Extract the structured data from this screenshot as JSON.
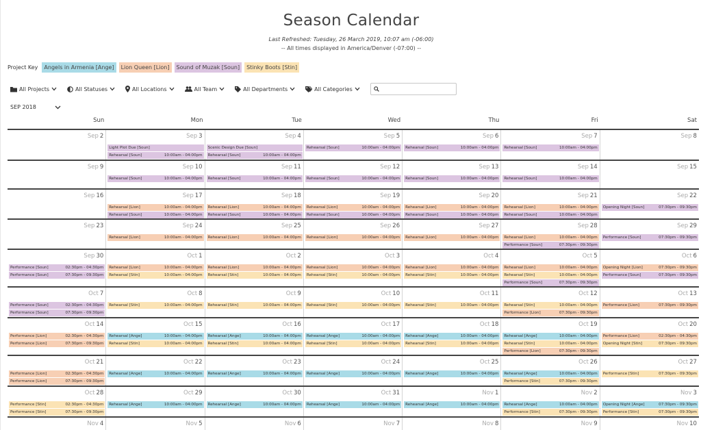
{
  "header": {
    "title": "Season Calendar",
    "refreshed": "Last Refreshed: Tuesday, 26 March 2019, 10:07 am (-06:00)",
    "timezone": "-- All times displayed in America/Denver (-07:00) --"
  },
  "project_key": {
    "label": "Project Key",
    "projects": [
      {
        "label": "Angels in Armenia [Ange]",
        "color": "#a9dbe7"
      },
      {
        "label": "Lion Queen [Lion]",
        "color": "#f7cfb4"
      },
      {
        "label": "Sound of Muzak [Soun]",
        "color": "#dcc5e1"
      },
      {
        "label": "Stinky Boots [Stin]",
        "color": "#fbe3b4"
      }
    ]
  },
  "filters": [
    {
      "label": "All Projects",
      "icon": "folder-icon"
    },
    {
      "label": "All Statuses",
      "icon": "half-circle-icon"
    },
    {
      "label": "All Locations",
      "icon": "location-pin-icon"
    },
    {
      "label": "All Team",
      "icon": "people-icon"
    },
    {
      "label": "All Departments",
      "icon": "tag-icon"
    },
    {
      "label": "All Categories",
      "icon": "tags-icon"
    }
  ],
  "search": {
    "placeholder": "",
    "icon": "search-icon"
  },
  "month_selector": {
    "value": "SEP 2018"
  },
  "day_headers": [
    "Sun",
    "Mon",
    "Tue",
    "Wed",
    "Thu",
    "Fri",
    "Sat"
  ],
  "weeks": [
    [
      {
        "mon": "Sep",
        "day": "2",
        "events": []
      },
      {
        "mon": "Sep",
        "day": "3",
        "events": [
          {
            "label": "Light Plot Due [Soun]",
            "time": "",
            "proj": "soun"
          },
          {
            "label": "Rehearsal [Soun]",
            "time": "10:00am - 04:00pm",
            "proj": "soun"
          }
        ]
      },
      {
        "mon": "Sep",
        "day": "4",
        "events": [
          {
            "label": "Scenic Design Due [Soun]",
            "time": "",
            "proj": "soun"
          },
          {
            "label": "Rehearsal [Soun]",
            "time": "10:00am - 04:00pm",
            "proj": "soun"
          }
        ]
      },
      {
        "mon": "Sep",
        "day": "5",
        "events": [
          {
            "label": "Rehearsal [Soun]",
            "time": "10:00am - 04:00pm",
            "proj": "soun"
          }
        ]
      },
      {
        "mon": "Sep",
        "day": "6",
        "events": [
          {
            "label": "Rehearsal [Soun]",
            "time": "10:00am - 04:00pm",
            "proj": "soun"
          }
        ]
      },
      {
        "mon": "Sep",
        "day": "7",
        "events": [
          {
            "label": "Rehearsal [Soun]",
            "time": "10:00am - 04:00pm",
            "proj": "soun"
          }
        ]
      },
      {
        "mon": "Sep",
        "day": "8",
        "events": []
      }
    ],
    [
      {
        "mon": "Sep",
        "day": "9",
        "events": []
      },
      {
        "mon": "Sep",
        "day": "10",
        "events": [
          {
            "label": "Rehearsal [Soun]",
            "time": "10:00am - 04:00pm",
            "proj": "soun"
          }
        ]
      },
      {
        "mon": "Sep",
        "day": "11",
        "events": [
          {
            "label": "Rehearsal [Soun]",
            "time": "10:00am - 04:00pm",
            "proj": "soun"
          }
        ]
      },
      {
        "mon": "Sep",
        "day": "12",
        "events": [
          {
            "label": "Rehearsal [Soun]",
            "time": "10:00am - 04:00pm",
            "proj": "soun"
          }
        ]
      },
      {
        "mon": "Sep",
        "day": "13",
        "events": [
          {
            "label": "Rehearsal [Soun]",
            "time": "10:00am - 04:00pm",
            "proj": "soun"
          }
        ]
      },
      {
        "mon": "Sep",
        "day": "14",
        "events": [
          {
            "label": "Rehearsal [Soun]",
            "time": "10:00am - 04:00pm",
            "proj": "soun"
          }
        ]
      },
      {
        "mon": "Sep",
        "day": "15",
        "events": []
      }
    ],
    [
      {
        "mon": "Sep",
        "day": "16",
        "events": []
      },
      {
        "mon": "Sep",
        "day": "17",
        "events": [
          {
            "label": "Rehearsal [Lion]",
            "time": "10:00am - 04:00pm",
            "proj": "lion"
          },
          {
            "label": "Rehearsal [Soun]",
            "time": "10:00am - 04:00pm",
            "proj": "soun"
          }
        ]
      },
      {
        "mon": "Sep",
        "day": "18",
        "events": [
          {
            "label": "Rehearsal [Lion]",
            "time": "10:00am - 04:00pm",
            "proj": "lion"
          },
          {
            "label": "Rehearsal [Soun]",
            "time": "10:00am - 04:00pm",
            "proj": "soun"
          }
        ]
      },
      {
        "mon": "Sep",
        "day": "19",
        "events": [
          {
            "label": "Rehearsal [Lion]",
            "time": "10:00am - 04:00pm",
            "proj": "lion"
          },
          {
            "label": "Rehearsal [Soun]",
            "time": "10:00am - 04:00pm",
            "proj": "soun"
          }
        ]
      },
      {
        "mon": "Sep",
        "day": "20",
        "events": [
          {
            "label": "Rehearsal [Lion]",
            "time": "10:00am - 04:00pm",
            "proj": "lion"
          },
          {
            "label": "Rehearsal [Soun]",
            "time": "10:00am - 04:00pm",
            "proj": "soun"
          }
        ]
      },
      {
        "mon": "Sep",
        "day": "21",
        "events": [
          {
            "label": "Rehearsal [Lion]",
            "time": "10:00am - 04:00pm",
            "proj": "lion"
          },
          {
            "label": "Rehearsal [Soun]",
            "time": "10:00am - 04:00pm",
            "proj": "soun"
          }
        ]
      },
      {
        "mon": "Sep",
        "day": "22",
        "events": [
          {
            "label": "Opening Night [Soun]",
            "time": "07:30pm - 09:30pm",
            "proj": "soun"
          }
        ]
      }
    ],
    [
      {
        "mon": "Sep",
        "day": "23",
        "events": []
      },
      {
        "mon": "Sep",
        "day": "24",
        "events": [
          {
            "label": "Rehearsal [Lion]",
            "time": "10:00am - 04:00pm",
            "proj": "lion"
          }
        ]
      },
      {
        "mon": "Sep",
        "day": "25",
        "events": [
          {
            "label": "Rehearsal [Lion]",
            "time": "10:00am - 04:00pm",
            "proj": "lion"
          }
        ]
      },
      {
        "mon": "Sep",
        "day": "26",
        "events": [
          {
            "label": "Rehearsal [Lion]",
            "time": "10:00am - 04:00pm",
            "proj": "lion"
          }
        ]
      },
      {
        "mon": "Sep",
        "day": "27",
        "events": [
          {
            "label": "Rehearsal [Lion]",
            "time": "10:00am - 04:00pm",
            "proj": "lion"
          }
        ]
      },
      {
        "mon": "Sep",
        "day": "28",
        "events": [
          {
            "label": "Rehearsal [Lion]",
            "time": "10:00am - 04:00pm",
            "proj": "lion"
          },
          {
            "label": "Performance [Soun]",
            "time": "07:30pm - 09:30pm",
            "proj": "soun"
          }
        ]
      },
      {
        "mon": "Sep",
        "day": "29",
        "events": [
          {
            "label": "Performance [Soun]",
            "time": "07:30pm - 09:30pm",
            "proj": "soun"
          }
        ]
      }
    ],
    [
      {
        "mon": "Sep",
        "day": "30",
        "events": [
          {
            "label": "Performance [Soun]",
            "time": "02:30pm - 04:30pm",
            "proj": "soun"
          },
          {
            "label": "Performance [Soun]",
            "time": "07:30pm - 09:30pm",
            "proj": "soun"
          }
        ]
      },
      {
        "mon": "Oct",
        "day": "1",
        "events": [
          {
            "label": "Rehearsal [Lion]",
            "time": "10:00am - 04:00pm",
            "proj": "lion"
          },
          {
            "label": "Rehearsal [Stin]",
            "time": "10:00am - 04:00pm",
            "proj": "stin"
          }
        ]
      },
      {
        "mon": "Oct",
        "day": "2",
        "events": [
          {
            "label": "Rehearsal [Lion]",
            "time": "10:00am - 04:00pm",
            "proj": "lion"
          },
          {
            "label": "Rehearsal [Stin]",
            "time": "10:00am - 04:00pm",
            "proj": "stin"
          }
        ]
      },
      {
        "mon": "Oct",
        "day": "3",
        "events": [
          {
            "label": "Rehearsal [Lion]",
            "time": "10:00am - 04:00pm",
            "proj": "lion"
          },
          {
            "label": "Rehearsal [Stin]",
            "time": "10:00am - 04:00pm",
            "proj": "stin"
          }
        ]
      },
      {
        "mon": "Oct",
        "day": "4",
        "events": [
          {
            "label": "Rehearsal [Lion]",
            "time": "10:00am - 04:00pm",
            "proj": "lion"
          },
          {
            "label": "Rehearsal [Stin]",
            "time": "10:00am - 04:00pm",
            "proj": "stin"
          }
        ]
      },
      {
        "mon": "Oct",
        "day": "5",
        "events": [
          {
            "label": "Rehearsal [Lion]",
            "time": "10:00am - 04:00pm",
            "proj": "lion"
          },
          {
            "label": "Rehearsal [Stin]",
            "time": "10:00am - 04:00pm",
            "proj": "stin"
          },
          {
            "label": "Performance [Soun]",
            "time": "07:30pm - 09:30pm",
            "proj": "soun"
          }
        ]
      },
      {
        "mon": "Oct",
        "day": "6",
        "events": [
          {
            "label": "Opening Night [Lion]",
            "time": "07:30pm - 09:30pm",
            "proj": "lion"
          },
          {
            "label": "Performance [Soun]",
            "time": "07:30pm - 09:30pm",
            "proj": "soun"
          }
        ]
      }
    ],
    [
      {
        "mon": "Oct",
        "day": "7",
        "events": [
          {
            "label": "Performance [Soun]",
            "time": "02:30pm - 04:30pm",
            "proj": "soun"
          },
          {
            "label": "Performance [Soun]",
            "time": "07:30pm - 09:30pm",
            "proj": "soun"
          }
        ]
      },
      {
        "mon": "Oct",
        "day": "8",
        "events": [
          {
            "label": "Rehearsal [Stin]",
            "time": "10:00am - 04:00pm",
            "proj": "stin"
          }
        ]
      },
      {
        "mon": "Oct",
        "day": "9",
        "events": [
          {
            "label": "Rehearsal [Stin]",
            "time": "10:00am - 04:00pm",
            "proj": "stin"
          }
        ]
      },
      {
        "mon": "Oct",
        "day": "10",
        "events": [
          {
            "label": "Rehearsal [Stin]",
            "time": "10:00am - 04:00pm",
            "proj": "stin"
          }
        ]
      },
      {
        "mon": "Oct",
        "day": "11",
        "events": [
          {
            "label": "Rehearsal [Stin]",
            "time": "10:00am - 04:00pm",
            "proj": "stin"
          }
        ]
      },
      {
        "mon": "Oct",
        "day": "12",
        "events": [
          {
            "label": "Rehearsal [Stin]",
            "time": "10:00am - 04:00pm",
            "proj": "stin"
          },
          {
            "label": "Performance [Lion]",
            "time": "07:30pm - 09:30pm",
            "proj": "lion"
          }
        ]
      },
      {
        "mon": "Oct",
        "day": "13",
        "events": [
          {
            "label": "Performance [Lion]",
            "time": "07:30pm - 09:30pm",
            "proj": "lion"
          }
        ]
      }
    ],
    [
      {
        "mon": "Oct",
        "day": "14",
        "events": [
          {
            "label": "Performance [Lion]",
            "time": "02:30pm - 04:30pm",
            "proj": "lion"
          },
          {
            "label": "Performance [Lion]",
            "time": "07:30pm - 09:30pm",
            "proj": "lion"
          }
        ]
      },
      {
        "mon": "Oct",
        "day": "15",
        "events": [
          {
            "label": "Rehearsal [Ange]",
            "time": "10:00am - 04:00pm",
            "proj": "ange"
          },
          {
            "label": "Rehearsal [Stin]",
            "time": "10:00am - 04:00pm",
            "proj": "stin"
          }
        ]
      },
      {
        "mon": "Oct",
        "day": "16",
        "events": [
          {
            "label": "Rehearsal [Ange]",
            "time": "10:00am - 04:00pm",
            "proj": "ange"
          },
          {
            "label": "Rehearsal [Stin]",
            "time": "10:00am - 04:00pm",
            "proj": "stin"
          }
        ]
      },
      {
        "mon": "Oct",
        "day": "17",
        "events": [
          {
            "label": "Rehearsal [Ange]",
            "time": "10:00am - 04:00pm",
            "proj": "ange"
          },
          {
            "label": "Rehearsal [Stin]",
            "time": "10:00am - 04:00pm",
            "proj": "stin"
          }
        ]
      },
      {
        "mon": "Oct",
        "day": "18",
        "events": [
          {
            "label": "Rehearsal [Ange]",
            "time": "10:00am - 04:00pm",
            "proj": "ange"
          },
          {
            "label": "Rehearsal [Stin]",
            "time": "10:00am - 04:00pm",
            "proj": "stin"
          }
        ]
      },
      {
        "mon": "Oct",
        "day": "19",
        "events": [
          {
            "label": "Rehearsal [Ange]",
            "time": "10:00am - 04:00pm",
            "proj": "ange"
          },
          {
            "label": "Rehearsal [Stin]",
            "time": "10:00am - 04:00pm",
            "proj": "stin"
          },
          {
            "label": "Performance [Lion]",
            "time": "07:30pm - 09:30pm",
            "proj": "lion"
          }
        ]
      },
      {
        "mon": "Oct",
        "day": "20",
        "events": [
          {
            "label": "Performance [Lion]",
            "time": "02:30pm - 04:30pm",
            "proj": "lion"
          },
          {
            "label": "Opening Night [Stin]",
            "time": "07:30pm - 09:30pm",
            "proj": "stin"
          }
        ]
      }
    ],
    [
      {
        "mon": "Oct",
        "day": "21",
        "events": [
          {
            "label": "Performance [Lion]",
            "time": "02:30pm - 04:30pm",
            "proj": "lion"
          },
          {
            "label": "Performance [Lion]",
            "time": "07:30pm - 09:30pm",
            "proj": "lion"
          }
        ]
      },
      {
        "mon": "Oct",
        "day": "22",
        "events": [
          {
            "label": "Rehearsal [Ange]",
            "time": "10:00am - 04:00pm",
            "proj": "ange"
          }
        ]
      },
      {
        "mon": "Oct",
        "day": "23",
        "events": [
          {
            "label": "Rehearsal [Ange]",
            "time": "10:00am - 04:00pm",
            "proj": "ange"
          }
        ]
      },
      {
        "mon": "Oct",
        "day": "24",
        "events": [
          {
            "label": "Rehearsal [Ange]",
            "time": "10:00am - 04:00pm",
            "proj": "ange"
          }
        ]
      },
      {
        "mon": "Oct",
        "day": "25",
        "events": [
          {
            "label": "Rehearsal [Ange]",
            "time": "10:00am - 04:00pm",
            "proj": "ange"
          }
        ]
      },
      {
        "mon": "Oct",
        "day": "26",
        "events": [
          {
            "label": "Rehearsal [Ange]",
            "time": "10:00am - 04:00pm",
            "proj": "ange"
          },
          {
            "label": "Performance [Stin]",
            "time": "07:30pm - 09:30pm",
            "proj": "stin"
          }
        ]
      },
      {
        "mon": "Oct",
        "day": "27",
        "events": [
          {
            "label": "Performance [Stin]",
            "time": "07:30pm - 09:30pm",
            "proj": "stin"
          }
        ]
      }
    ],
    [
      {
        "mon": "Oct",
        "day": "28",
        "events": [
          {
            "label": "Performance [Stin]",
            "time": "02:30pm - 04:30pm",
            "proj": "stin"
          },
          {
            "label": "Performance [Stin]",
            "time": "07:30pm - 09:30pm",
            "proj": "stin"
          }
        ]
      },
      {
        "mon": "Oct",
        "day": "29",
        "events": [
          {
            "label": "Rehearsal [Ange]",
            "time": "10:00am - 04:00pm",
            "proj": "ange"
          }
        ]
      },
      {
        "mon": "Oct",
        "day": "30",
        "events": [
          {
            "label": "Rehearsal [Ange]",
            "time": "10:00am - 04:00pm",
            "proj": "ange"
          }
        ]
      },
      {
        "mon": "Oct",
        "day": "31",
        "events": [
          {
            "label": "Rehearsal [Ange]",
            "time": "10:00am - 04:00pm",
            "proj": "ange"
          }
        ]
      },
      {
        "mon": "Nov",
        "day": "1",
        "events": [
          {
            "label": "Rehearsal [Ange]",
            "time": "10:00am - 04:00pm",
            "proj": "ange"
          }
        ]
      },
      {
        "mon": "Nov",
        "day": "2",
        "events": [
          {
            "label": "Rehearsal [Ange]",
            "time": "10:00am - 04:00pm",
            "proj": "ange"
          },
          {
            "label": "Performance [Stin]",
            "time": "07:30pm - 09:30pm",
            "proj": "stin"
          }
        ]
      },
      {
        "mon": "Nov",
        "day": "3",
        "events": [
          {
            "label": "Opening Night [Ange]",
            "time": "07:30pm - 09:30pm",
            "proj": "ange"
          },
          {
            "label": "Performance [Stin]",
            "time": "07:30pm - 09:30pm",
            "proj": "stin"
          }
        ]
      }
    ],
    [
      {
        "mon": "Nov",
        "day": "4",
        "events": []
      },
      {
        "mon": "Nov",
        "day": "5",
        "events": []
      },
      {
        "mon": "Nov",
        "day": "6",
        "events": []
      },
      {
        "mon": "Nov",
        "day": "7",
        "events": []
      },
      {
        "mon": "Nov",
        "day": "8",
        "events": []
      },
      {
        "mon": "Nov",
        "day": "9",
        "events": []
      },
      {
        "mon": "Nov",
        "day": "10",
        "events": []
      }
    ]
  ]
}
